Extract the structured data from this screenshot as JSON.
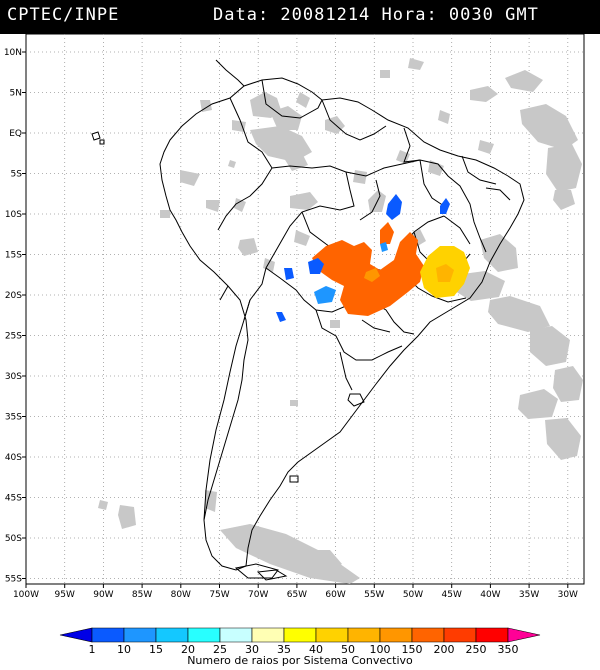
{
  "header": {
    "source": "CPTEC/INPE",
    "datetime": "Data: 20081214 Hora: 0030 GMT"
  },
  "map": {
    "lat_labels": [
      "10N",
      "5N",
      "EQ",
      "5S",
      "10S",
      "15S",
      "20S",
      "25S",
      "30S",
      "35S",
      "40S",
      "45S",
      "50S",
      "55S"
    ],
    "lon_labels": [
      "100W",
      "95W",
      "90W",
      "85W",
      "80W",
      "75W",
      "70W",
      "65W",
      "60W",
      "55W",
      "50W",
      "45W",
      "40W",
      "35W",
      "30W"
    ],
    "colors": {
      "cloud": "#c8c8c8",
      "border": "#000000",
      "grid": "#999999"
    }
  },
  "legend": {
    "values": [
      "1",
      "10",
      "15",
      "20",
      "25",
      "30",
      "35",
      "40",
      "50",
      "100",
      "150",
      "200",
      "250",
      "350"
    ],
    "colors": [
      "#0000e6",
      "#0a5aff",
      "#1e96ff",
      "#14c8ff",
      "#28ffff",
      "#c8ffff",
      "#ffffb4",
      "#ffff00",
      "#ffd200",
      "#ffb400",
      "#ff9600",
      "#ff6400",
      "#ff3c00",
      "#ff0000",
      "#ff0096"
    ],
    "caption": "Numero de raios por Sistema Convectivo"
  }
}
